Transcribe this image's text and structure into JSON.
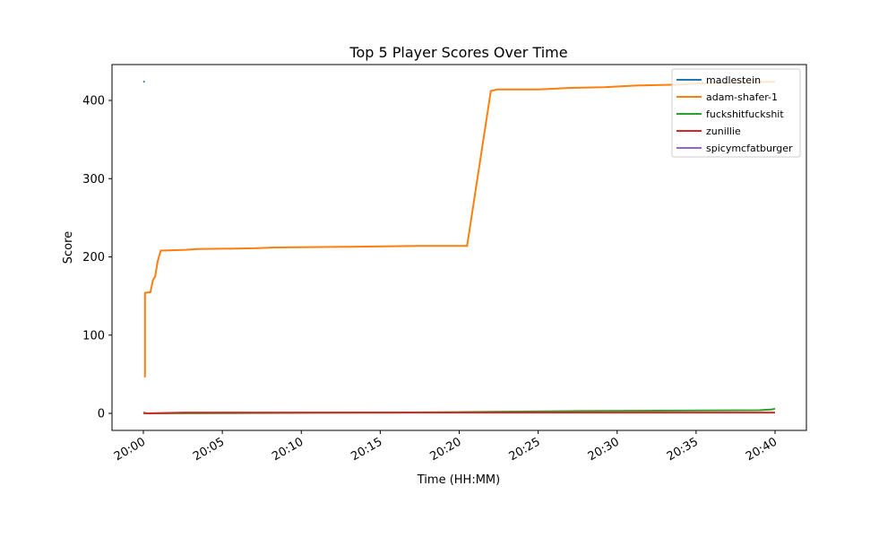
{
  "chart_data": {
    "type": "line",
    "title": "Top 5 Player Scores Over Time",
    "xlabel": "Time (HH:MM)",
    "ylabel": "Score",
    "xlim_minutes_label_range": [
      "19:58",
      "20:42"
    ],
    "ylim": [
      -22,
      445
    ],
    "x_ticks": [
      "20:00",
      "20:05",
      "20:10",
      "20:15",
      "20:20",
      "20:25",
      "20:30",
      "20:35",
      "20:40"
    ],
    "y_ticks": [
      0,
      100,
      200,
      300,
      400
    ],
    "grid": false,
    "legend_position": "top-right",
    "series": [
      {
        "name": "madlestein",
        "color": "#1f77b4",
        "x": [
          "20:00:00",
          "20:00:05"
        ],
        "y": [
          424,
          424
        ]
      },
      {
        "name": "adam-shafer-1",
        "color": "#ff7f0e",
        "x": [
          "20:00:06",
          "20:00:06",
          "20:00:27",
          "20:00:36",
          "20:00:45",
          "20:00:54",
          "20:01:06",
          "20:02:42",
          "20:03:24",
          "20:07:00",
          "20:08:18",
          "20:13:00",
          "20:17:24",
          "20:20:30",
          "20:22:00",
          "20:22:24",
          "20:25:00",
          "20:26:06",
          "20:27:00",
          "20:29:12",
          "20:31:12",
          "20:33:30",
          "20:36:00",
          "20:40:00"
        ],
        "y": [
          46,
          154,
          155,
          170,
          175,
          194,
          208,
          209,
          210,
          211,
          212,
          213,
          214,
          214,
          412,
          414,
          414,
          415,
          416,
          417,
          419,
          420,
          422,
          424
        ]
      },
      {
        "name": "fuckshitfuckshit",
        "color": "#2ca02c",
        "x": [
          "20:00:00",
          "20:15:42",
          "20:22:00",
          "20:27:36",
          "20:39:00",
          "20:39:48",
          "20:40:00"
        ],
        "y": [
          0,
          1,
          2,
          3,
          4,
          5,
          6
        ]
      },
      {
        "name": "zunillie",
        "color": "#d62728",
        "x": [
          "20:00:00",
          "20:00:12",
          "20:02:36",
          "20:13:00",
          "20:40:00"
        ],
        "y": [
          1,
          0,
          1,
          1,
          1
        ]
      },
      {
        "name": "spicymcfatburger",
        "color": "#9467bd",
        "x": [
          "20:00:00",
          "20:00:03"
        ],
        "y": [
          1,
          1
        ]
      }
    ]
  }
}
